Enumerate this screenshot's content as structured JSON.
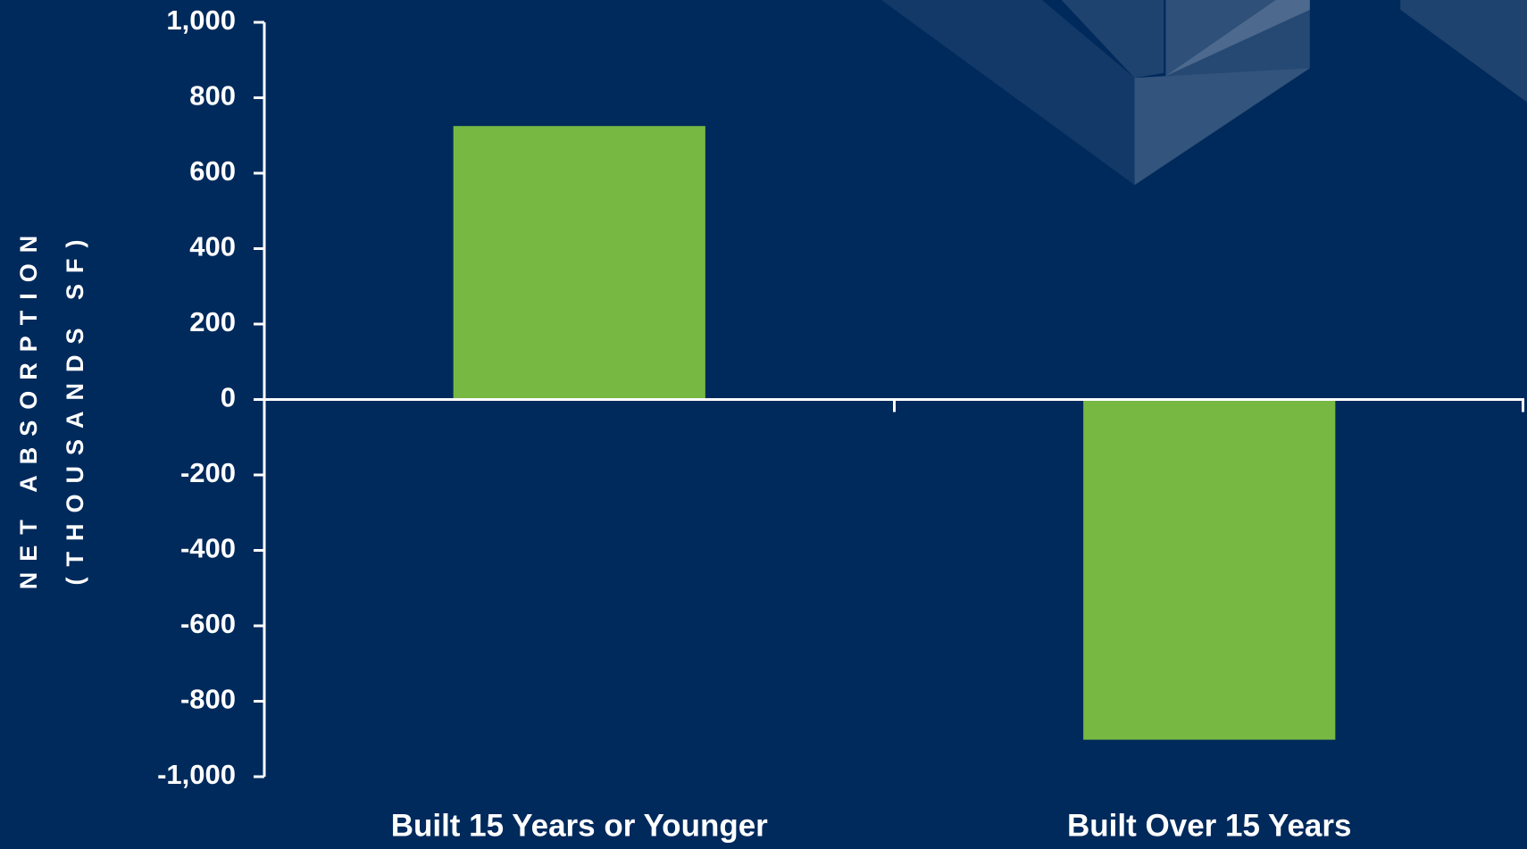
{
  "chart_data": {
    "type": "bar",
    "y_label": [
      "NET ABSORPTION",
      "(THOUSANDS SF)"
    ],
    "categories": [
      "Built 15 Years or Younger",
      "Built Over 15 Years"
    ],
    "values": [
      725,
      -902
    ],
    "color": "#77b843",
    "ylim": [
      -1000,
      1000
    ],
    "yticks": [
      {
        "value": -1000,
        "label": "-1,000"
      },
      -800,
      -600,
      -400,
      -200,
      0,
      200,
      400,
      600,
      800,
      {
        "value": 1000,
        "label": "1,000"
      }
    ],
    "grid": false
  }
}
